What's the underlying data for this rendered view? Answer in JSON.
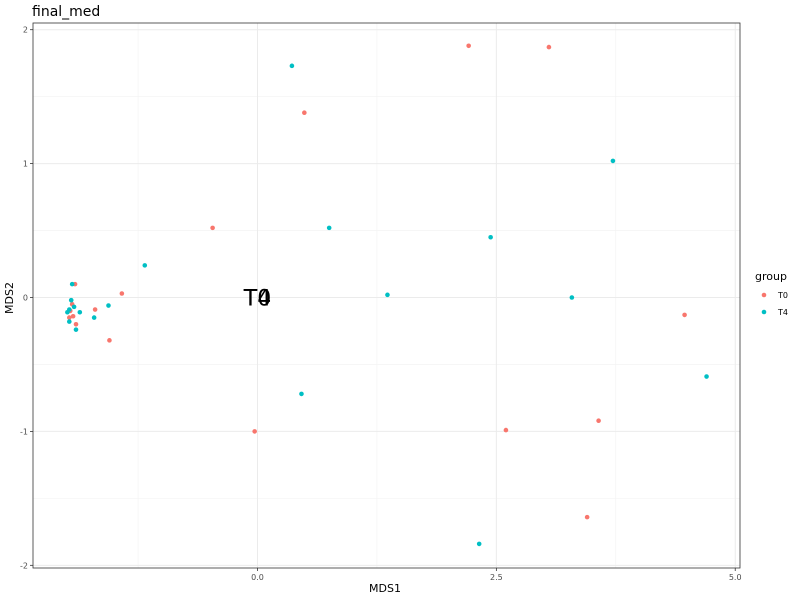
{
  "chart_data": {
    "type": "scatter",
    "title": "final_med",
    "xlabel": "MDS1",
    "ylabel": "MDS2",
    "xlim": [
      -2.35,
      5.05
    ],
    "ylim": [
      -2.02,
      2.05
    ],
    "x_ticks": [
      0.0,
      2.5,
      5.0
    ],
    "x_tick_labels": [
      "0.0",
      "2.5",
      "5.0"
    ],
    "y_ticks": [
      -2,
      -1,
      0,
      1,
      2
    ],
    "y_tick_labels": [
      "-2",
      "-1",
      "0",
      "1",
      "2"
    ],
    "grid": true,
    "legend": {
      "title": "group",
      "position": "right"
    },
    "series": [
      {
        "name": "T0",
        "color": "#F8766D",
        "points": [
          [
            2.21,
            1.88
          ],
          [
            3.05,
            1.87
          ],
          [
            0.49,
            1.38
          ],
          [
            -0.47,
            0.52
          ],
          [
            -1.42,
            0.03
          ],
          [
            -1.91,
            0.1
          ],
          [
            -1.94,
            -0.05
          ],
          [
            -1.96,
            -0.1
          ],
          [
            -1.97,
            -0.15
          ],
          [
            -1.93,
            -0.14
          ],
          [
            -1.9,
            -0.2
          ],
          [
            -1.7,
            -0.09
          ],
          [
            -1.55,
            -0.32
          ],
          [
            -0.03,
            -1.0
          ],
          [
            2.6,
            -0.99
          ],
          [
            3.57,
            -0.92
          ],
          [
            4.47,
            -0.13
          ],
          [
            3.45,
            -1.64
          ]
        ]
      },
      {
        "name": "T4",
        "color": "#00BFC4",
        "points": [
          [
            0.36,
            1.73
          ],
          [
            3.72,
            1.02
          ],
          [
            0.75,
            0.52
          ],
          [
            2.44,
            0.45
          ],
          [
            -1.18,
            0.24
          ],
          [
            -1.94,
            0.1
          ],
          [
            1.36,
            0.02
          ],
          [
            3.29,
            0.0
          ],
          [
            -1.95,
            -0.02
          ],
          [
            -1.92,
            -0.07
          ],
          [
            -1.86,
            -0.11
          ],
          [
            -1.97,
            -0.09
          ],
          [
            -1.99,
            -0.11
          ],
          [
            -1.71,
            -0.15
          ],
          [
            -1.56,
            -0.06
          ],
          [
            -1.97,
            -0.18
          ],
          [
            -1.9,
            -0.24
          ],
          [
            0.46,
            -0.72
          ],
          [
            4.7,
            -0.59
          ],
          [
            2.32,
            -1.84
          ]
        ]
      }
    ],
    "annotations": [
      {
        "text": "T0",
        "x": 0.0,
        "y": 0.0
      },
      {
        "text": "T4",
        "x": 0.0,
        "y": 0.0
      }
    ]
  }
}
